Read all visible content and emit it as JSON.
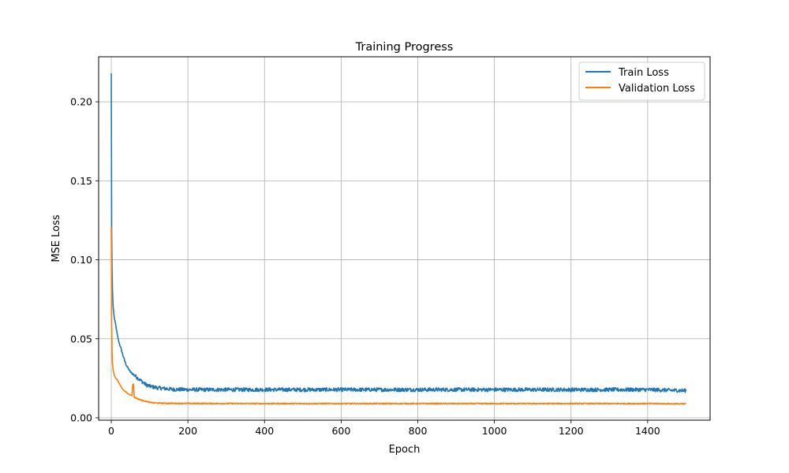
{
  "chart_data": {
    "type": "line",
    "title": "Training Progress",
    "xlabel": "Epoch",
    "ylabel": "MSE Loss",
    "xlim": [
      -33,
      1563
    ],
    "ylim": [
      -0.0015,
      0.2285
    ],
    "xticks": [
      0,
      200,
      400,
      600,
      800,
      1000,
      1200,
      1400
    ],
    "yticks": [
      0.0,
      0.05,
      0.1,
      0.15,
      0.2
    ],
    "ytick_labels": [
      "0.00",
      "0.05",
      "0.10",
      "0.15",
      "0.20"
    ],
    "grid": true,
    "legend_position": "upper right",
    "series": [
      {
        "name": "Train Loss",
        "color": "#1f77b4",
        "points": [
          [
            0,
            0.218
          ],
          [
            1,
            0.12
          ],
          [
            2,
            0.095
          ],
          [
            3,
            0.082
          ],
          [
            5,
            0.07
          ],
          [
            8,
            0.063
          ],
          [
            12,
            0.058
          ],
          [
            16,
            0.052
          ],
          [
            20,
            0.048
          ],
          [
            25,
            0.044
          ],
          [
            30,
            0.04
          ],
          [
            35,
            0.036
          ],
          [
            40,
            0.033
          ],
          [
            45,
            0.031
          ],
          [
            50,
            0.029
          ],
          [
            55,
            0.028
          ],
          [
            60,
            0.027
          ],
          [
            70,
            0.025
          ],
          [
            80,
            0.023
          ],
          [
            90,
            0.021
          ],
          [
            100,
            0.02
          ],
          [
            120,
            0.019
          ],
          [
            140,
            0.0185
          ],
          [
            160,
            0.018
          ],
          [
            200,
            0.0178
          ],
          [
            300,
            0.0178
          ],
          [
            400,
            0.0178
          ],
          [
            600,
            0.0178
          ],
          [
            800,
            0.0178
          ],
          [
            1000,
            0.0178
          ],
          [
            1200,
            0.0178
          ],
          [
            1400,
            0.0178
          ],
          [
            1500,
            0.0172
          ]
        ],
        "noise_amplitude": 0.0022
      },
      {
        "name": "Validation Loss",
        "color": "#ff7f0e",
        "points": [
          [
            0,
            0.121
          ],
          [
            1,
            0.06
          ],
          [
            2,
            0.042
          ],
          [
            3,
            0.035
          ],
          [
            5,
            0.03
          ],
          [
            8,
            0.027
          ],
          [
            12,
            0.025
          ],
          [
            16,
            0.024
          ],
          [
            20,
            0.022
          ],
          [
            25,
            0.02
          ],
          [
            30,
            0.018
          ],
          [
            35,
            0.017
          ],
          [
            40,
            0.016
          ],
          [
            45,
            0.015
          ],
          [
            50,
            0.0145
          ],
          [
            54,
            0.014
          ],
          [
            56,
            0.021
          ],
          [
            58,
            0.0215
          ],
          [
            60,
            0.013
          ],
          [
            70,
            0.012
          ],
          [
            80,
            0.011
          ],
          [
            90,
            0.0105
          ],
          [
            100,
            0.0098
          ],
          [
            120,
            0.0093
          ],
          [
            150,
            0.0092
          ],
          [
            200,
            0.0091
          ],
          [
            400,
            0.009
          ],
          [
            600,
            0.009
          ],
          [
            800,
            0.009
          ],
          [
            1000,
            0.009
          ],
          [
            1200,
            0.009
          ],
          [
            1400,
            0.009
          ],
          [
            1500,
            0.0088
          ]
        ],
        "noise_amplitude": 0.0006
      }
    ]
  }
}
